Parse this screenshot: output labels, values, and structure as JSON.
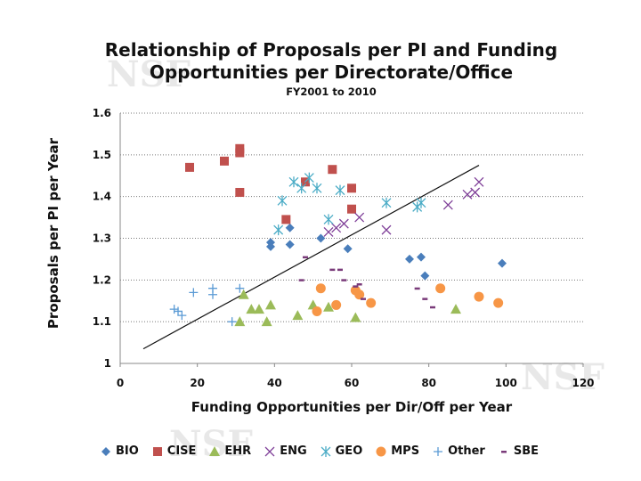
{
  "chart_data": {
    "type": "scatter",
    "title": "Relationship of Proposals per PI and Funding Opportunities per Directorate/Office",
    "title_line1": "Relationship of Proposals per PI and Funding",
    "title_line2": "Opportunities per Directorate/Office",
    "subtitle": "FY2001 to 2010",
    "xlabel": "Funding Opportunities per Dir/Off per Year",
    "ylabel": "Proposals per PI per Year",
    "xlim": [
      0,
      120
    ],
    "ylim": [
      1,
      1.6
    ],
    "xticks": [
      0,
      20,
      40,
      60,
      80,
      100,
      120
    ],
    "xtick_labels": [
      "0",
      "20",
      "40",
      "60",
      "80",
      "100",
      "120"
    ],
    "yticks": [
      1,
      1.1,
      1.2,
      1.3,
      1.4,
      1.5,
      1.6
    ],
    "ytick_labels": [
      "1",
      "1.1",
      "1.2",
      "1.3",
      "1.4",
      "1.5",
      "1.6"
    ],
    "grid": "horizontal dotted",
    "legend_position": "bottom",
    "trendline": {
      "x": [
        6,
        93
      ],
      "y": [
        1.035,
        1.475
      ]
    },
    "series": [
      {
        "name": "BIO",
        "marker": "diamond",
        "color": "#4a7ebb",
        "x": [
          39,
          39,
          44,
          44,
          52,
          59,
          75,
          78,
          79,
          99
        ],
        "y": [
          1.29,
          1.28,
          1.325,
          1.285,
          1.3,
          1.275,
          1.25,
          1.255,
          1.21,
          1.24
        ]
      },
      {
        "name": "CISE",
        "marker": "square",
        "color": "#c0504d",
        "x": [
          18,
          27,
          31,
          31,
          31,
          43,
          48,
          55,
          60,
          60
        ],
        "y": [
          1.47,
          1.485,
          1.515,
          1.505,
          1.41,
          1.345,
          1.435,
          1.465,
          1.42,
          1.37
        ]
      },
      {
        "name": "EHR",
        "marker": "triangle",
        "color": "#9bbb59",
        "x": [
          31,
          32,
          34,
          36,
          38,
          39,
          46,
          50,
          54,
          61,
          87
        ],
        "y": [
          1.1,
          1.165,
          1.13,
          1.13,
          1.1,
          1.14,
          1.115,
          1.14,
          1.135,
          1.11,
          1.13
        ]
      },
      {
        "name": "ENG",
        "marker": "x",
        "color": "#7f3f98",
        "x": [
          54,
          56,
          58,
          62,
          69,
          85,
          90,
          92,
          93
        ],
        "y": [
          1.315,
          1.325,
          1.335,
          1.35,
          1.32,
          1.38,
          1.405,
          1.41,
          1.435
        ]
      },
      {
        "name": "GEO",
        "marker": "asterisk",
        "color": "#4bacc6",
        "x": [
          41,
          42,
          45,
          47,
          49,
          51,
          54,
          57,
          69,
          77,
          78
        ],
        "y": [
          1.32,
          1.39,
          1.435,
          1.42,
          1.445,
          1.42,
          1.345,
          1.415,
          1.385,
          1.375,
          1.385
        ]
      },
      {
        "name": "MPS",
        "marker": "circle",
        "color": "#f79646",
        "x": [
          51,
          52,
          56,
          61,
          62,
          65,
          83,
          93,
          98
        ],
        "y": [
          1.125,
          1.18,
          1.14,
          1.175,
          1.165,
          1.145,
          1.18,
          1.16,
          1.145
        ]
      },
      {
        "name": "Other",
        "marker": "plus",
        "color": "#5b9bd5",
        "x": [
          14,
          15,
          16,
          19,
          24,
          24,
          29,
          31
        ],
        "y": [
          1.13,
          1.125,
          1.115,
          1.17,
          1.18,
          1.165,
          1.1,
          1.18
        ]
      },
      {
        "name": "SBE",
        "marker": "dash",
        "color": "#7a3b7a",
        "x": [
          47,
          48,
          55,
          57,
          58,
          61,
          62,
          63,
          77,
          79,
          81
        ],
        "y": [
          1.2,
          1.255,
          1.225,
          1.225,
          1.2,
          1.185,
          1.19,
          1.155,
          1.18,
          1.155,
          1.135
        ]
      }
    ]
  },
  "watermark": {
    "text": "NSF"
  }
}
